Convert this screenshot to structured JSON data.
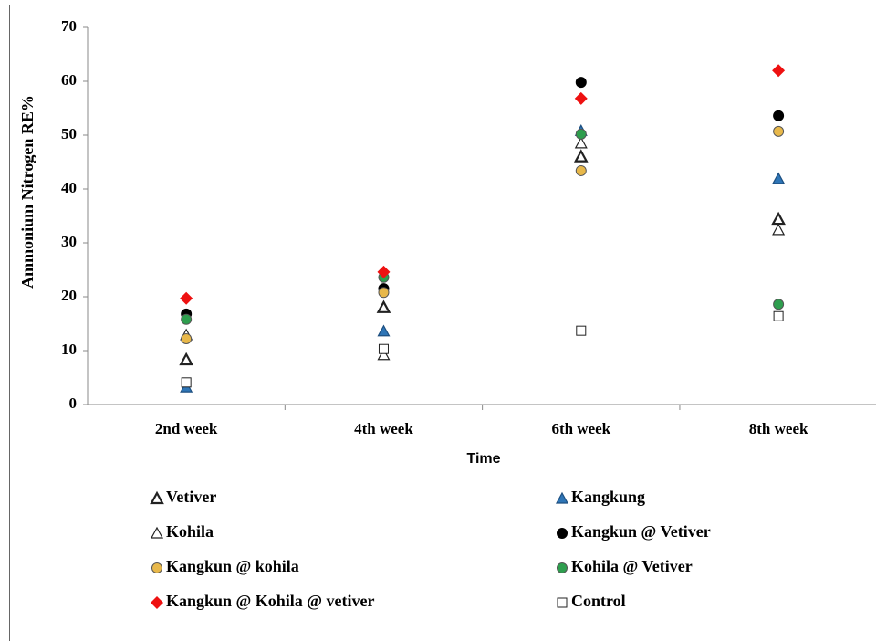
{
  "chart_data": {
    "type": "scatter",
    "y_label": "Ammonium Nitrogen RE%",
    "x_label": "Time",
    "categories": [
      "2nd week",
      "4th  week",
      "6th  week",
      "8th  week"
    ],
    "ylim": [
      0,
      70
    ],
    "yticks": [
      0,
      10,
      20,
      30,
      40,
      50,
      60,
      70
    ],
    "series": [
      {
        "name": "Vetiver",
        "marker": "triangle-open-thick",
        "color": "#222222",
        "values": [
          8.3,
          18,
          46,
          34.4
        ]
      },
      {
        "name": "Kangkung",
        "marker": "triangle",
        "color": "#2e75b6",
        "values": [
          3.2,
          13.6,
          50.8,
          41.9
        ]
      },
      {
        "name": "Kohila",
        "marker": "triangle-open",
        "color": "#222222",
        "values": [
          12.9,
          9.2,
          48.5,
          32.4
        ]
      },
      {
        "name": "Kangkun @ Vetiver",
        "marker": "circle",
        "color": "#000000",
        "values": [
          16.8,
          21.5,
          59.8,
          53.6
        ]
      },
      {
        "name": "Kangkun @ kohila",
        "marker": "circle-edged",
        "color": "#e8b84a",
        "values": [
          12.2,
          20.8,
          43.4,
          50.7
        ]
      },
      {
        "name": "Kohila @ Vetiver",
        "marker": "circle-edged",
        "color": "#2e9e4e",
        "values": [
          15.8,
          23.6,
          50.2,
          18.6
        ]
      },
      {
        "name": "Kangkun @ Kohila @ vetiver",
        "marker": "diamond",
        "color": "#ee1111",
        "values": [
          19.7,
          24.6,
          56.8,
          62
        ]
      },
      {
        "name": "Control",
        "marker": "square-open",
        "color": "#222222",
        "values": [
          4.1,
          10.3,
          13.7,
          16.4
        ]
      }
    ]
  }
}
